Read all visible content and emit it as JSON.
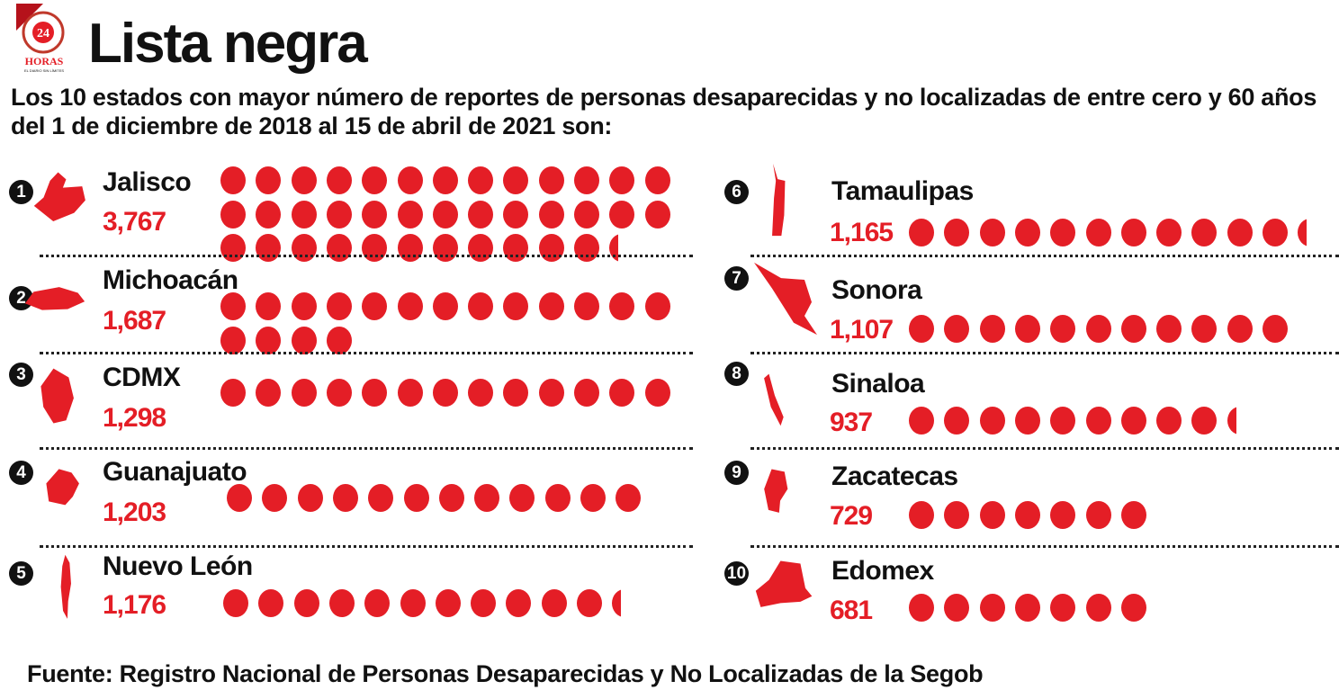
{
  "logo": {
    "brand": "24 HORAS",
    "tagline": "EL DIARIO SIN LÍMITES"
  },
  "title": "Lista negra",
  "subtitle": "Los 10 estados con mayor número de reportes de personas desaparecidas y no localizadas de entre cero y 60 años del 1 de diciembre de 2018 al 15 de abril de 2021 son:",
  "footer": "Fuente: Registro Nacional de Personas Desaparecidas y No Localizadas de la Segob",
  "colors": {
    "accent": "#e41e26",
    "text": "#111111"
  },
  "chart_data": {
    "type": "bar",
    "title": "Lista negra",
    "unit_note": "each dot ≈ 100 reports",
    "dot_unit": 100,
    "dots_per_row": 13,
    "categories": [
      "Jalisco",
      "Michoacán",
      "CDMX",
      "Guanajuato",
      "Nuevo León",
      "Tamaulipas",
      "Sonora",
      "Sinaloa",
      "Zacatecas",
      "Edomex"
    ],
    "ranks": [
      "1",
      "2",
      "3",
      "4",
      "5",
      "6",
      "7",
      "8",
      "9",
      "10"
    ],
    "values": [
      3767,
      1687,
      1298,
      1203,
      1176,
      1165,
      1107,
      937,
      729,
      681
    ],
    "value_labels": [
      "3,767",
      "1,687",
      "1,298",
      "1,203",
      "1,176",
      "1,165",
      "1,107",
      "937",
      "729",
      "681"
    ]
  }
}
